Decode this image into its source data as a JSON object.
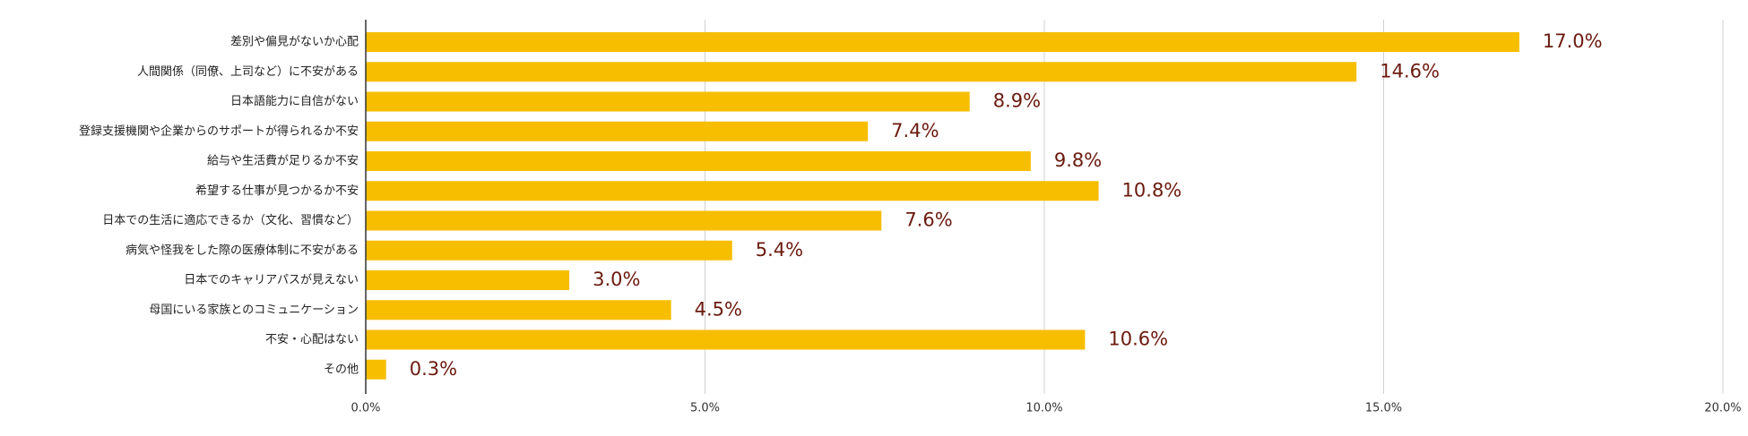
{
  "chart_data": {
    "type": "bar",
    "orientation": "horizontal",
    "title": "",
    "xlabel": "",
    "ylabel": "",
    "categories": [
      "差別や偏見がないか心配",
      "人間関係（同僚、上司など）に不安がある",
      "日本語能力に自信がない",
      "登録支援機関や企業からのサポートが得られるか不安",
      "給与や生活費が足りるか不安",
      "希望する仕事が見つかるか不安",
      "日本での生活に適応できるか（文化、習慣など）",
      "病気や怪我をした際の医療体制に不安がある",
      "日本でのキャリアパスが見えない",
      "母国にいる家族とのコミュニケーション",
      "不安・心配はない",
      "その他"
    ],
    "values": [
      17.0,
      14.6,
      8.9,
      7.4,
      9.8,
      10.8,
      7.6,
      5.4,
      3.0,
      4.5,
      10.6,
      0.3
    ],
    "value_labels": [
      "17.0%",
      "14.6%",
      "8.9%",
      "7.4%",
      "9.8%",
      "10.8%",
      "7.6%",
      "5.4%",
      "3.0%",
      "4.5%",
      "10.6%",
      "0.3%"
    ],
    "xlim": [
      0,
      20
    ],
    "x_ticks": [
      0,
      5,
      10,
      15,
      20
    ],
    "x_tick_labels": [
      "0.0%",
      "5.0%",
      "10.0%",
      "15.0%",
      "20.0%"
    ],
    "grid": true,
    "legend": "none",
    "colors": {
      "bar": "#F7BE00",
      "value_label": "#6B1A0F",
      "category_label": "#222222",
      "tick_label": "#333333",
      "grid": "#D0D0D0",
      "axis": "#333333"
    }
  }
}
